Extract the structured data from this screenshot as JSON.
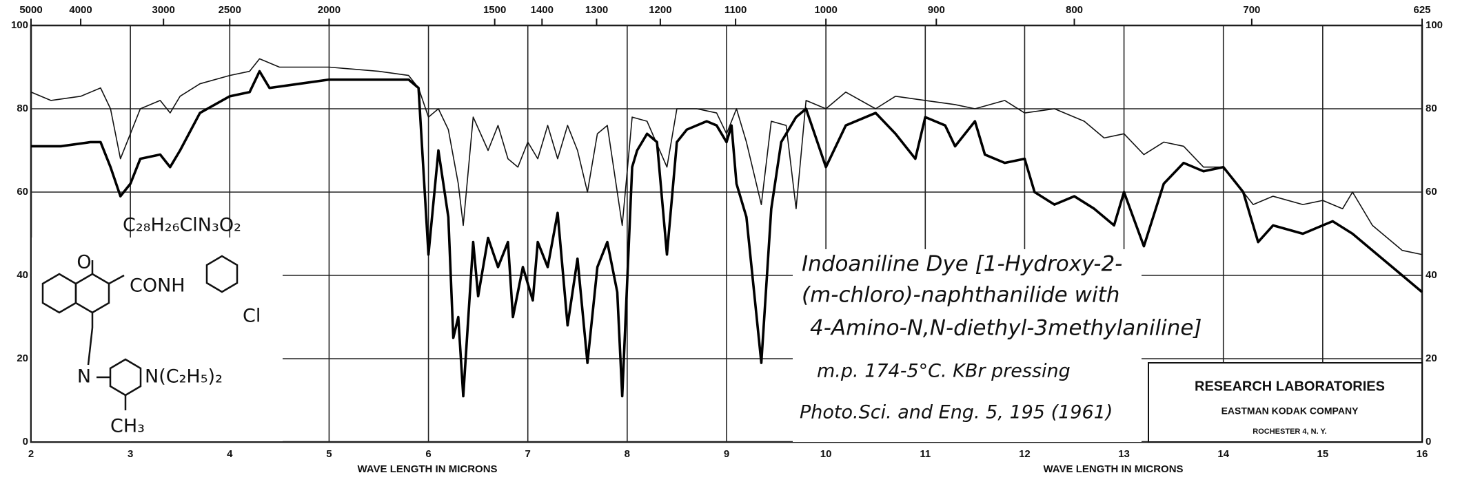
{
  "chart_data": {
    "type": "line",
    "xlabel": "WAVE LENGTH IN MICRONS",
    "xlim": [
      2,
      16
    ],
    "xticks": [
      2,
      3,
      4,
      5,
      6,
      7,
      8,
      9,
      10,
      11,
      12,
      13,
      14,
      15,
      16
    ],
    "ylim": [
      0,
      100
    ],
    "yticks": [
      0,
      20,
      40,
      60,
      80,
      100
    ],
    "x2lim": [
      5000,
      625
    ],
    "x2ticks": [
      5000,
      4000,
      3000,
      2500,
      2000,
      1500,
      1400,
      1300,
      1200,
      1100,
      1000,
      900,
      800,
      700,
      625
    ],
    "grid": true,
    "series": [
      {
        "color": "#111111",
        "x": [
          2.0,
          2.2,
          2.5,
          2.7,
          2.8,
          2.9,
          3.0,
          3.1,
          3.3,
          3.4,
          3.5,
          3.7,
          4.0,
          4.2,
          4.3,
          4.5,
          5.0,
          5.5,
          5.8,
          5.9,
          6.0,
          6.1,
          6.2,
          6.3,
          6.35,
          6.45,
          6.6,
          6.7,
          6.8,
          6.9,
          7.0,
          7.1,
          7.2,
          7.3,
          7.4,
          7.5,
          7.6,
          7.7,
          7.8,
          7.95,
          8.05,
          8.2,
          8.4,
          8.5,
          8.7,
          8.9,
          9.0,
          9.1,
          9.2,
          9.35,
          9.45,
          9.6,
          9.7,
          9.8,
          10.0,
          10.2,
          10.5,
          10.7,
          11.0,
          11.3,
          11.5,
          11.8,
          12.0,
          12.3,
          12.6,
          12.8,
          13.0,
          13.2,
          13.4,
          13.6,
          13.8,
          14.0,
          14.3,
          14.5,
          14.8,
          15.0,
          15.2,
          15.3,
          15.5,
          15.8,
          16.0
        ],
        "values": [
          84,
          82,
          83,
          85,
          80,
          68,
          74,
          80,
          82,
          79,
          83,
          86,
          88,
          89,
          92,
          90,
          90,
          89,
          88,
          85,
          78,
          80,
          75,
          62,
          52,
          78,
          70,
          76,
          68,
          66,
          72,
          68,
          76,
          68,
          76,
          70,
          60,
          74,
          76,
          52,
          78,
          77,
          66,
          80,
          80,
          79,
          74,
          80,
          72,
          57,
          77,
          76,
          56,
          82,
          80,
          84,
          80,
          83,
          82,
          81,
          80,
          82,
          79,
          80,
          77,
          73,
          74,
          69,
          72,
          71,
          66,
          66,
          57,
          59,
          57,
          58,
          56,
          60,
          52,
          46,
          45
        ]
      },
      {
        "color": "#000000",
        "x": [
          2.0,
          2.3,
          2.6,
          2.7,
          2.8,
          2.9,
          3.0,
          3.1,
          3.3,
          3.4,
          3.5,
          3.7,
          4.0,
          4.2,
          4.3,
          4.4,
          4.7,
          5.0,
          5.5,
          5.8,
          5.9,
          6.0,
          6.1,
          6.2,
          6.25,
          6.3,
          6.35,
          6.45,
          6.5,
          6.6,
          6.7,
          6.8,
          6.85,
          6.95,
          7.05,
          7.1,
          7.2,
          7.3,
          7.4,
          7.5,
          7.6,
          7.7,
          7.8,
          7.9,
          7.95,
          8.05,
          8.1,
          8.2,
          8.3,
          8.4,
          8.5,
          8.6,
          8.8,
          8.9,
          9.0,
          9.05,
          9.1,
          9.2,
          9.35,
          9.45,
          9.55,
          9.7,
          9.8,
          10.0,
          10.2,
          10.5,
          10.7,
          10.9,
          11.0,
          11.2,
          11.3,
          11.5,
          11.6,
          11.8,
          12.0,
          12.1,
          12.3,
          12.5,
          12.7,
          12.9,
          13.0,
          13.2,
          13.4,
          13.6,
          13.8,
          14.0,
          14.2,
          14.35,
          14.5,
          14.8,
          15.0,
          15.1,
          15.3,
          15.5,
          15.8,
          16.0
        ],
        "values": [
          71,
          71,
          72,
          72,
          66,
          59,
          62,
          68,
          69,
          66,
          70,
          79,
          83,
          84,
          89,
          85,
          86,
          87,
          87,
          87,
          85,
          45,
          70,
          54,
          25,
          30,
          11,
          48,
          35,
          49,
          42,
          48,
          30,
          42,
          34,
          48,
          42,
          55,
          28,
          44,
          19,
          42,
          48,
          36,
          11,
          66,
          70,
          74,
          72,
          45,
          72,
          75,
          77,
          76,
          72,
          76,
          62,
          54,
          19,
          56,
          72,
          78,
          80,
          66,
          76,
          79,
          74,
          68,
          78,
          76,
          71,
          77,
          69,
          67,
          68,
          60,
          57,
          59,
          56,
          52,
          60,
          47,
          62,
          67,
          65,
          66,
          60,
          48,
          52,
          50,
          52,
          53,
          50,
          46,
          40,
          36
        ]
      }
    ],
    "formula": "C₂₈H₂₆ClN₃O₂",
    "structure_labels": [
      "O",
      "CONH",
      "Cl",
      "N",
      "N(C₂H₅)₂",
      "CH₃"
    ],
    "notes": [
      "Indoaniline Dye [1-Hydroxy-2-",
      "(m-chloro)-naphthanilide with",
      "4-Amino-N,N-diethyl-3methylaniline]",
      "m.p. 174-5°C.   KBr pressing",
      "Photo.Sci. and Eng. 5, 195 (1961)"
    ],
    "maker": [
      "RESEARCH LABORATORIES",
      "EASTMAN KODAK COMPANY",
      "ROCHESTER 4, N. Y."
    ]
  }
}
